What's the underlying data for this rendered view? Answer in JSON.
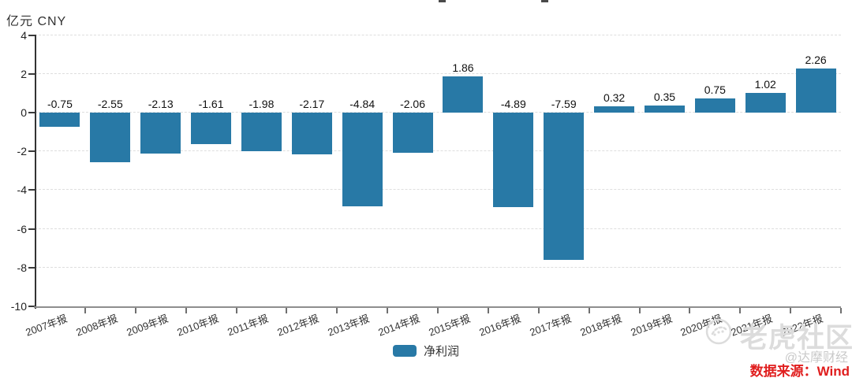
{
  "unit_label": "亿元 CNY",
  "legend": {
    "label": "净利润"
  },
  "watermarks": {
    "community": "老虎社区",
    "author": "@达摩财经"
  },
  "source_note": "数据来源：Wind",
  "colors": {
    "bar": "#2879A6",
    "source_red": "#E01E1E",
    "watermark_gray": "#DCDCDC",
    "author_gray": "#C9C9C9",
    "grid": "#DEDEDE",
    "axis_dark": "#333333",
    "axis_gray": "#8E8E8E"
  },
  "chart_data": {
    "type": "bar",
    "title": "",
    "categories": [
      "2007年报",
      "2008年报",
      "2009年报",
      "2010年报",
      "2011年报",
      "2012年报",
      "2013年报",
      "2014年报",
      "2015年报",
      "2016年报",
      "2017年报",
      "2018年报",
      "2019年报",
      "2020年报",
      "2021年报",
      "2022年报"
    ],
    "series": [
      {
        "name": "净利润",
        "values": [
          -0.75,
          -2.55,
          -2.13,
          -1.61,
          -1.98,
          -2.17,
          -4.84,
          -2.06,
          1.86,
          -4.89,
          -7.59,
          0.32,
          0.35,
          0.75,
          1.02,
          2.26
        ]
      }
    ],
    "xlabel": "",
    "ylabel": "亿元 CNY",
    "ylim": [
      -10,
      4
    ],
    "ytick_interval": 2,
    "grid": true,
    "grid_style": "horizontal-dashed",
    "legend_position": "bottom-center",
    "value_labels": true,
    "bar_color": "#2879A6"
  }
}
